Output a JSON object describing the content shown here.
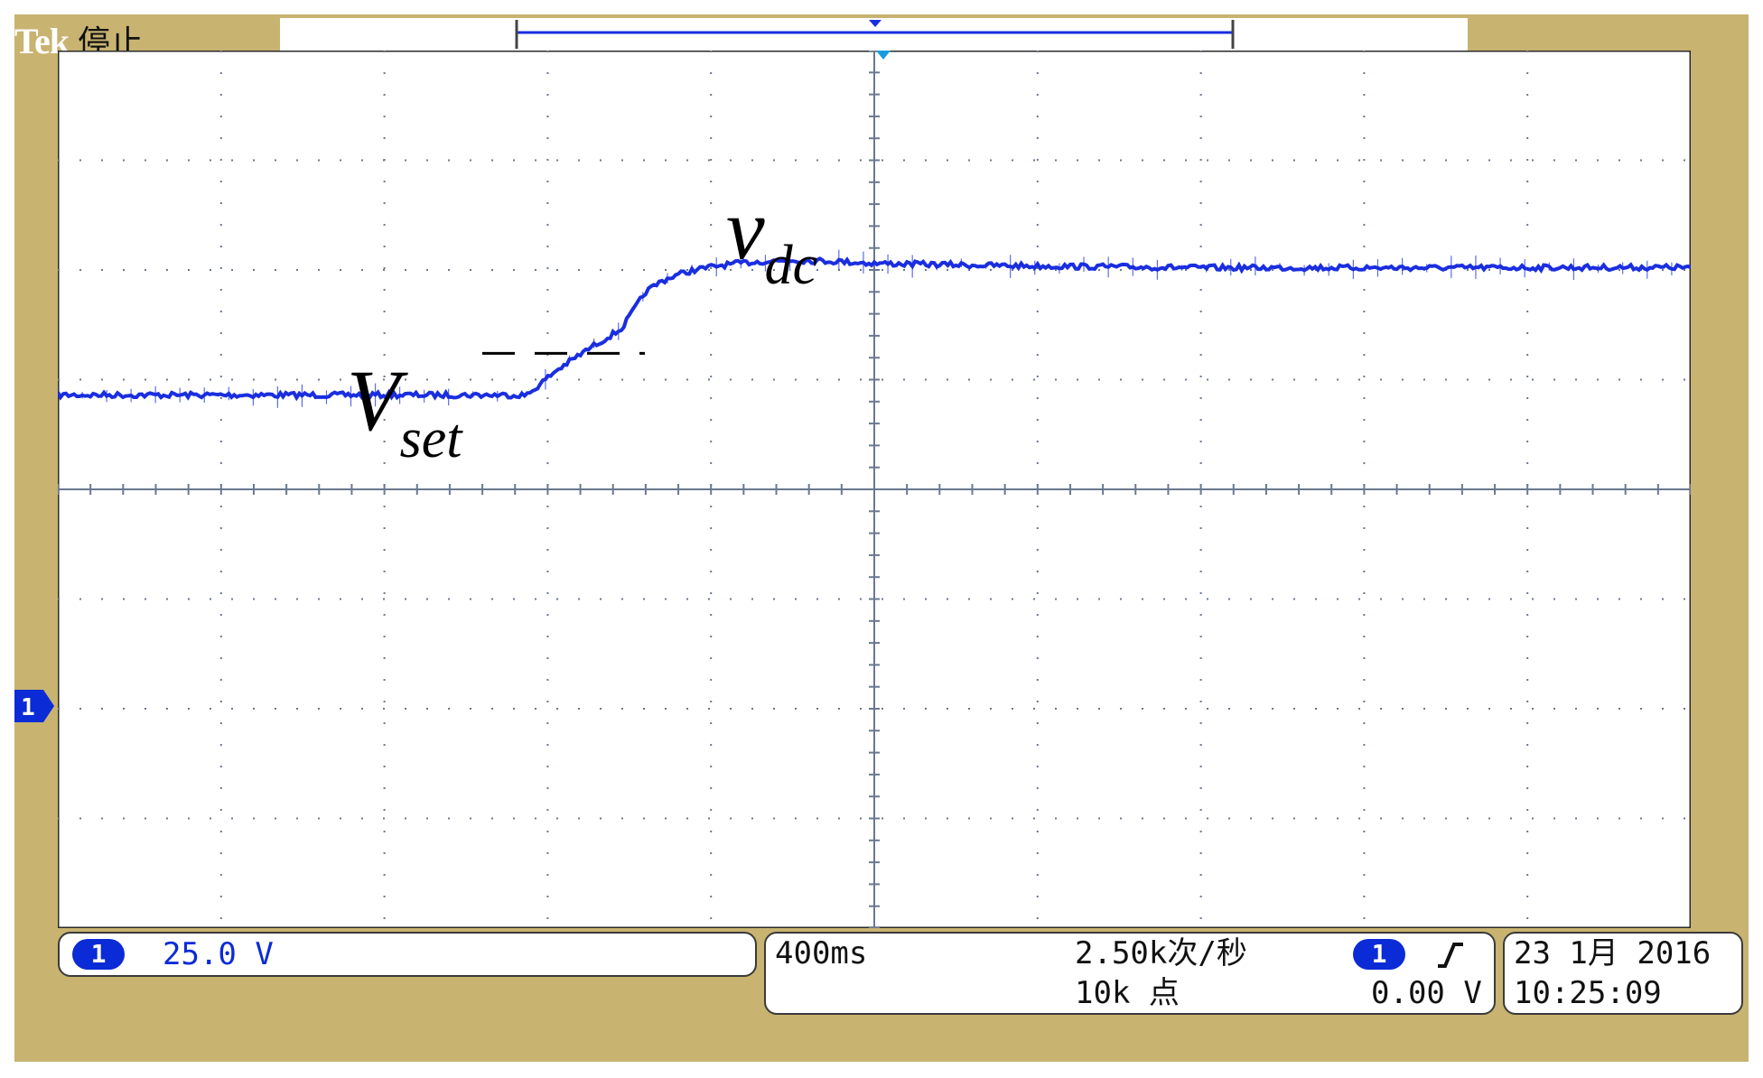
{
  "header": {
    "brand": "Tek",
    "status": "停止"
  },
  "channel": {
    "badge": "1",
    "scale": "25.0 V",
    "marker_label": "1"
  },
  "timebase": {
    "horizontal_scale": "400ms",
    "sample_rate": "2.50k次/秒",
    "record_length": "10k 点",
    "trigger_channel": "1",
    "trigger_slope_icon": "rising-edge-icon",
    "trigger_level": "0.00 V"
  },
  "datetime": {
    "date": "23 1月  2016",
    "time": "10:25:09"
  },
  "colors": {
    "frame": "#c8b370",
    "trace": "#1a2ee0",
    "grid": "#6a7890",
    "badge": "#0b2bd6"
  },
  "chart_data": {
    "type": "line",
    "title": "",
    "xlabel": "",
    "ylabel": "",
    "x_unit": "s",
    "y_unit": "V",
    "volts_per_div": 25.0,
    "seconds_per_div": 0.4,
    "xlim": [
      -2.0,
      2.0
    ],
    "ylim": [
      -100.0,
      100.0
    ],
    "channel_zero_level_V": 0,
    "grid": true,
    "divisions": {
      "horizontal": 10,
      "vertical": 8
    },
    "annotations": [
      {
        "text": "V",
        "subscript": "set",
        "refers_to": "reference level",
        "value": 31.0
      },
      {
        "text": "v",
        "subscript": "dc",
        "refers_to": "trace"
      }
    ],
    "series": [
      {
        "name": "",
        "x": [
          -2.0,
          -0.85,
          -0.78,
          -0.7,
          -0.62,
          -0.56,
          -0.52,
          -0.48,
          -0.44,
          -0.38,
          -0.3,
          -0.2,
          -0.1,
          0.0,
          0.3,
          0.8,
          1.4,
          2.0
        ],
        "y": [
          21.5,
          21.5,
          27.0,
          32.0,
          36.5,
          45.0,
          47.5,
          49.0,
          50.0,
          51.0,
          51.8,
          52.2,
          52.0,
          51.5,
          51.0,
          50.5,
          50.5,
          50.6
        ]
      }
    ]
  }
}
